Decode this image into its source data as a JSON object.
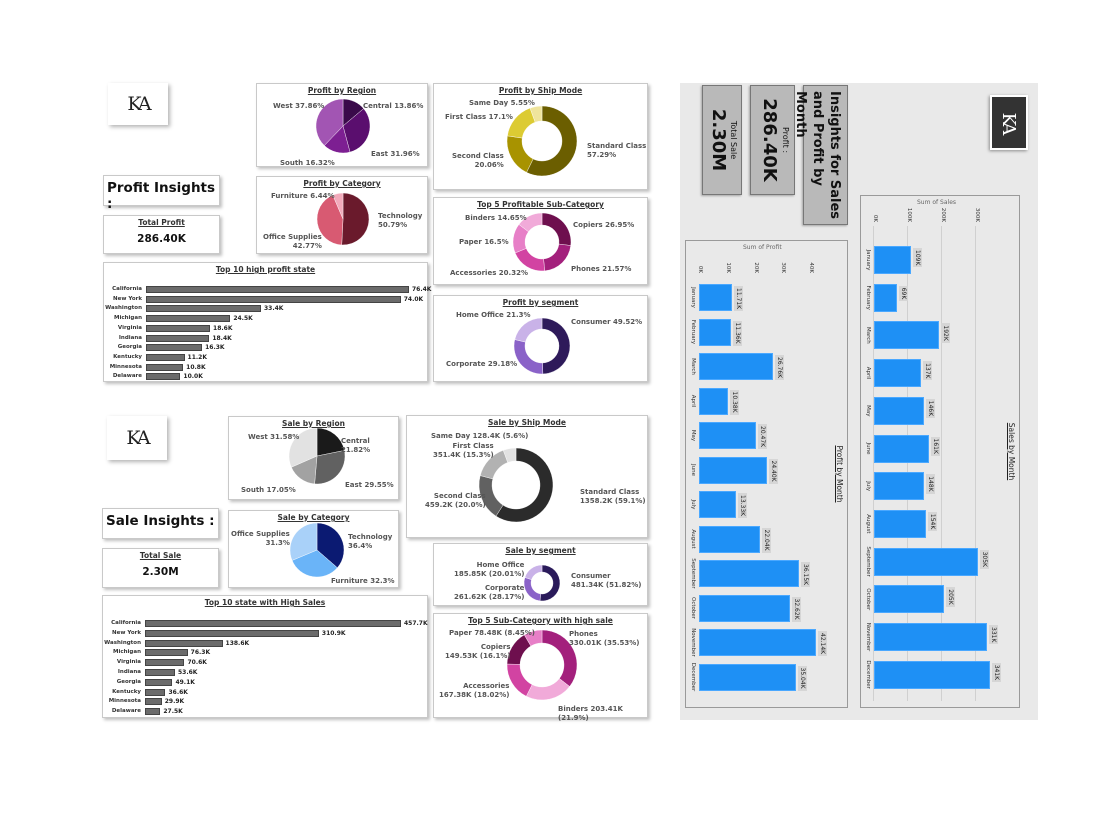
{
  "profit_dashboard": {
    "logo": "KA",
    "heading": "Profit Insights :",
    "kpi_label": "Total Profit",
    "kpi_value": "286.40K"
  },
  "sale_dashboard": {
    "logo": "KA",
    "heading": "Sale Insights :",
    "kpi_label": "Total Sale",
    "kpi_value": "2.30M"
  },
  "monthly_panel": {
    "logo": "KA",
    "title": "Insights for Sales and Profit by Month",
    "profit_label": "Profit :",
    "profit_value": "286.40K",
    "sale_label": "Total Sale",
    "sale_value": "2.30M"
  },
  "chart_data": [
    {
      "type": "pie",
      "title": "Profit by Region",
      "slices": [
        {
          "label": "Central",
          "value": 13.86,
          "text": "Central 13.86%",
          "color": "#3a0a4a"
        },
        {
          "label": "East",
          "value": 31.96,
          "text": "East 31.96%",
          "color": "#5a0e6e"
        },
        {
          "label": "South",
          "value": 16.32,
          "text": "South 16.32%",
          "color": "#7d1f92"
        },
        {
          "label": "West",
          "value": 37.86,
          "text": "West 37.86%",
          "color": "#a255b3"
        }
      ]
    },
    {
      "type": "pie",
      "title": "Profit by Category",
      "slices": [
        {
          "label": "Technology",
          "value": 50.79,
          "text": "Technology\n50.79%",
          "color": "#6a1a2c"
        },
        {
          "label": "Office Supplies",
          "value": 42.77,
          "text": "Office Supplies\n42.77%",
          "color": "#d85a72"
        },
        {
          "label": "Furniture",
          "value": 6.44,
          "text": "Furniture 6.44%",
          "color": "#f2aabb"
        }
      ]
    },
    {
      "type": "donut",
      "title": "Profit by Ship Mode",
      "slices": [
        {
          "label": "Standard Class",
          "value": 57.29,
          "text": "Standard Class\n57.29%",
          "color": "#6b5e00"
        },
        {
          "label": "Second Class",
          "value": 20.06,
          "text": "Second Class\n20.06%",
          "color": "#a89300"
        },
        {
          "label": "First Class",
          "value": 17.1,
          "text": "First Class 17.1%",
          "color": "#dccb33"
        },
        {
          "label": "Same Day",
          "value": 5.55,
          "text": "Same Day 5.55%",
          "color": "#efe49c"
        }
      ]
    },
    {
      "type": "donut",
      "title": "Top 5 Profitable Sub-Category",
      "slices": [
        {
          "label": "Copiers",
          "value": 26.95,
          "text": "Copiers 26.95%",
          "color": "#6e0f4e"
        },
        {
          "label": "Phones",
          "value": 21.57,
          "text": "Phones 21.57%",
          "color": "#a3207c"
        },
        {
          "label": "Accessories",
          "value": 20.32,
          "text": "Accessories 20.32%",
          "color": "#d243a2"
        },
        {
          "label": "Paper",
          "value": 16.5,
          "text": "Paper 16.5%",
          "color": "#e77fc7"
        },
        {
          "label": "Binders",
          "value": 14.65,
          "text": "Binders 14.65%",
          "color": "#f1aad9"
        }
      ]
    },
    {
      "type": "donut",
      "title": "Profit by segment",
      "slices": [
        {
          "label": "Consumer",
          "value": 49.52,
          "text": "Consumer 49.52%",
          "color": "#2e1a5a"
        },
        {
          "label": "Corporate",
          "value": 29.18,
          "text": "Corporate 29.18%",
          "color": "#8a62c8"
        },
        {
          "label": "Home Office",
          "value": 21.3,
          "text": "Home Office 21.3%",
          "color": "#c9b2e8"
        }
      ]
    },
    {
      "type": "bar",
      "title": "Top 10 high profit state",
      "categories": [
        "California",
        "New York",
        "Washington",
        "Michigan",
        "Virginia",
        "Indiana",
        "Georgia",
        "Kentucky",
        "Minnesota",
        "Delaware"
      ],
      "values": [
        76.4,
        74.0,
        33.4,
        24.5,
        18.6,
        18.4,
        16.3,
        11.2,
        10.8,
        10.0
      ],
      "labels": [
        "76.4K",
        "74.0K",
        "33.4K",
        "24.5K",
        "18.6K",
        "18.4K",
        "16.3K",
        "11.2K",
        "10.8K",
        "10.0K"
      ],
      "color": "#6b6b6b"
    },
    {
      "type": "pie",
      "title": "Sale by Region",
      "slices": [
        {
          "label": "Central",
          "value": 21.82,
          "text": "Central 21.82%",
          "color": "#1a1a1a"
        },
        {
          "label": "East",
          "value": 29.55,
          "text": "East 29.55%",
          "color": "#616161"
        },
        {
          "label": "South",
          "value": 17.05,
          "text": "South 17.05%",
          "color": "#a2a2a2"
        },
        {
          "label": "West",
          "value": 31.58,
          "text": "West 31.58%",
          "color": "#e2e2e2"
        }
      ]
    },
    {
      "type": "pie",
      "title": "Sale by Category",
      "slices": [
        {
          "label": "Technology",
          "value": 36.4,
          "text": "Technology\n36.4%",
          "color": "#0b1a72"
        },
        {
          "label": "Furniture",
          "value": 32.3,
          "text": "Furniture 32.3%",
          "color": "#6ab4f8"
        },
        {
          "label": "Office Supplies",
          "value": 31.3,
          "text": "Office Supplies\n31.3%",
          "color": "#a9d1f9"
        }
      ]
    },
    {
      "type": "donut",
      "title": "Sale by Ship Mode",
      "slices": [
        {
          "label": "Standard Class",
          "value": 59.1,
          "text": "Standard Class\n1358.2K (59.1%)",
          "color": "#2b2b2b"
        },
        {
          "label": "Second Class",
          "value": 20.0,
          "text": "Second Class\n459.2K (20.0%)",
          "color": "#616161"
        },
        {
          "label": "First Class",
          "value": 15.3,
          "text": "First Class\n351.4K (15.3%)",
          "color": "#b2b2b2"
        },
        {
          "label": "Same Day",
          "value": 5.6,
          "text": "Same Day 128.4K (5.6%)",
          "color": "#e2e2e2"
        }
      ]
    },
    {
      "type": "donut",
      "title": "Sale by segment",
      "slices": [
        {
          "label": "Consumer",
          "value": 51.82,
          "text": "Consumer\n481.34K (51.82%)",
          "color": "#2a1a5a"
        },
        {
          "label": "Corporate",
          "value": 28.17,
          "text": "Corporate\n261.62K (28.17%)",
          "color": "#8a62c8"
        },
        {
          "label": "Home Office",
          "value": 20.01,
          "text": "Home Office\n185.85K (20.01%)",
          "color": "#c9b2e8"
        }
      ]
    },
    {
      "type": "donut",
      "title": "Top 5 Sub-Category with high sale",
      "slices": [
        {
          "label": "Phones",
          "value": 35.53,
          "text": "Phones\n330.01K (35.53%)",
          "color": "#a3207c"
        },
        {
          "label": "Binders",
          "value": 21.9,
          "text": "Binders 203.41K (21.9%)",
          "color": "#f1aad9"
        },
        {
          "label": "Accessories",
          "value": 18.02,
          "text": "Accessories\n167.38K (18.02%)",
          "color": "#d243a2"
        },
        {
          "label": "Copiers",
          "value": 16.1,
          "text": "Copiers\n149.53K (16.1%)",
          "color": "#6e0f4e"
        },
        {
          "label": "Paper",
          "value": 8.45,
          "text": "Paper 78.48K (8.45%)",
          "color": "#e77fc7"
        }
      ]
    },
    {
      "type": "bar",
      "title": "Top 10 state with High Sales",
      "categories": [
        "California",
        "New York",
        "Washington",
        "Michigan",
        "Virginia",
        "Indiana",
        "Georgia",
        "Kentucky",
        "Minnesota",
        "Delaware"
      ],
      "values": [
        457.7,
        310.9,
        138.6,
        76.3,
        70.6,
        53.6,
        49.1,
        36.6,
        29.9,
        27.5
      ],
      "labels": [
        "457.7K",
        "310.9K",
        "138.6K",
        "76.3K",
        "70.6K",
        "53.6K",
        "49.1K",
        "36.6K",
        "29.9K",
        "27.5K"
      ],
      "color": "#6b6b6b"
    },
    {
      "type": "bar",
      "title": "Sales by Month",
      "ylabel": "Sum of Sales",
      "categories": [
        "January",
        "February",
        "March",
        "April",
        "May",
        "June",
        "July",
        "August",
        "September",
        "October",
        "November",
        "December"
      ],
      "values": [
        109,
        69,
        192,
        137,
        146,
        161,
        148,
        154,
        305,
        205,
        331,
        341
      ],
      "labels": [
        "109K",
        "69K",
        "192K",
        "137K",
        "146K",
        "161K",
        "148K",
        "154K",
        "305K",
        "205K",
        "331K",
        "341K"
      ],
      "yticks": [
        "0K",
        "100K",
        "200K",
        "300K"
      ],
      "ytick_values": [
        0,
        100,
        200,
        300
      ],
      "grid": true,
      "color": "#1e90f5"
    },
    {
      "type": "bar",
      "title": "Profit by Month",
      "ylabel": "Sum of Profit",
      "categories": [
        "January",
        "February",
        "March",
        "April",
        "May",
        "June",
        "July",
        "August",
        "September",
        "October",
        "November",
        "December"
      ],
      "values": [
        11.71,
        11.36,
        26.76,
        10.38,
        20.47,
        24.4,
        13.33,
        22.04,
        36.15,
        32.62,
        42.14,
        35.04
      ],
      "labels": [
        "11.71K",
        "11.36K",
        "26.76K",
        "10.38K",
        "20.47K",
        "24.40K",
        "13.33K",
        "22.04K",
        "36.15K",
        "32.62K",
        "42.14K",
        "35.04K"
      ],
      "yticks": [
        "0K",
        "10K",
        "20K",
        "30K",
        "40K"
      ],
      "ytick_values": [
        0,
        10,
        20,
        30,
        40
      ],
      "grid": false,
      "color": "#1e90f5"
    }
  ]
}
